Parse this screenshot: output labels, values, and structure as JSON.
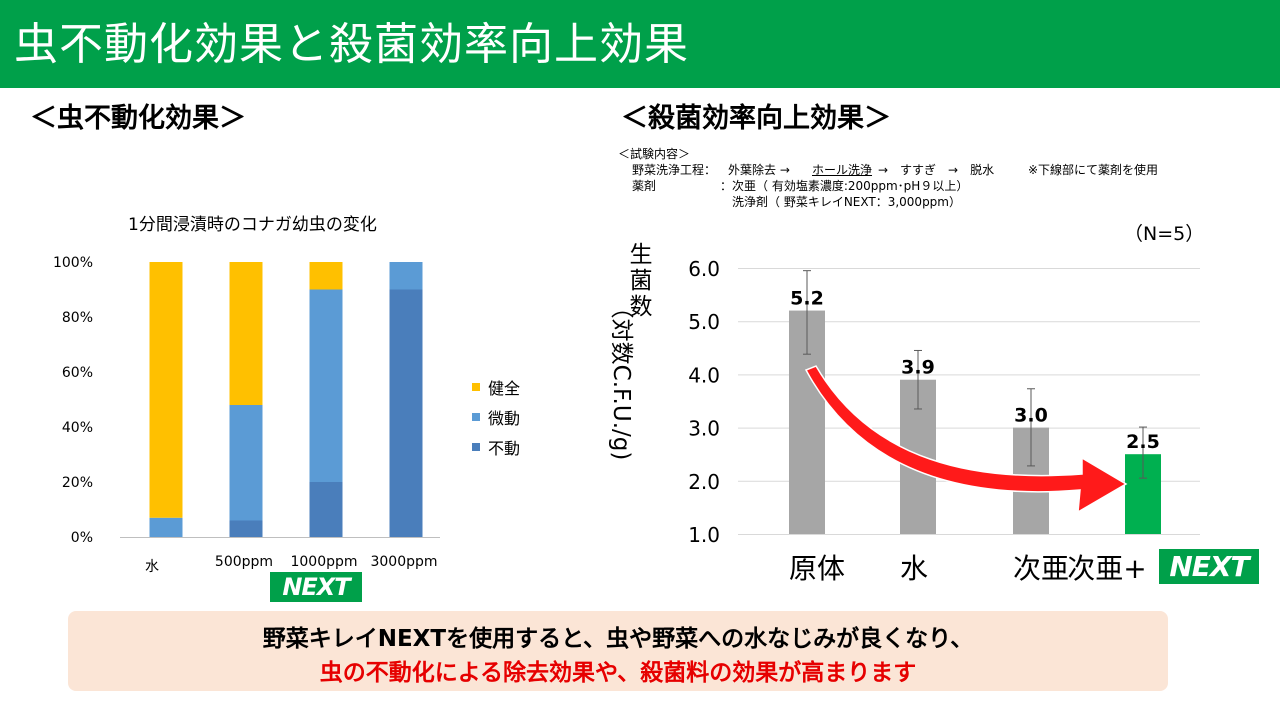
{
  "page_title": "虫不動化効果と殺菌効率向上効果",
  "left_section": {
    "heading": "＜虫不動化効果＞"
  },
  "right_section": {
    "heading": "＜殺菌効率向上効果＞",
    "test_notes": {
      "header": "＜試験内容＞",
      "line1_label": "野菜洗浄工程：",
      "line1_a": "外葉除去 →",
      "line1_b": "ホール洗浄",
      "line1_c": "→　すすぎ　→　脱水",
      "line1_note": "※下線部にて薬剤を使用",
      "line2_label": "薬剤",
      "line2_sep": "：",
      "line2_value": "次亜（ 有効塩素濃度:200ppm･pH９以上）",
      "line3_value": "洗浄剤（ 野菜キレイNEXT：3,000ppm）"
    },
    "n_label": "（N=5）"
  },
  "next_badge": "NEXT",
  "conclusion": {
    "line1": "野菜キレイNEXTを使用すると、虫や野菜への水なじみが良くなり、",
    "line2": "虫の不動化による除去効果や、殺菌料の効果が高まります"
  },
  "chart_data": [
    {
      "type": "bar",
      "stacked": true,
      "title": "1分間浸漬時のコナガ幼虫の変化",
      "categories": [
        "水",
        "500ppm",
        "1000ppm",
        "3000ppm"
      ],
      "ylim": [
        0,
        100
      ],
      "y_ticks": [
        "0%",
        "20%",
        "40%",
        "60%",
        "80%",
        "100%"
      ],
      "legend_position": "right",
      "series": [
        {
          "name": "不動",
          "color": "#4a7ebb",
          "values": [
            0,
            6,
            20,
            90
          ]
        },
        {
          "name": "微動",
          "color": "#5b9bd5",
          "values": [
            7,
            42,
            70,
            10
          ]
        },
        {
          "name": "健全",
          "color": "#ffc000",
          "values": [
            93,
            52,
            10,
            0
          ]
        }
      ],
      "grid": false
    },
    {
      "type": "bar",
      "ylabel_top": "生菌数",
      "ylabel_rest": "（対数C.F.U./g)",
      "categories": [
        "原体",
        "水",
        "次亜",
        "次亜+"
      ],
      "values": [
        5.2,
        3.9,
        3.0,
        2.5
      ],
      "value_labels": [
        "5.2",
        "3.9",
        "3.0",
        "2.5"
      ],
      "error_low": [
        4.38,
        3.35,
        2.28,
        2.05
      ],
      "error_high": [
        5.95,
        4.45,
        3.73,
        3.01
      ],
      "bar_colors": [
        "#a6a6a6",
        "#a6a6a6",
        "#a6a6a6",
        "#00b050"
      ],
      "ylim": [
        1.0,
        6.0
      ],
      "y_ticks": [
        "1.0",
        "2.0",
        "3.0",
        "4.0",
        "5.0",
        "6.0"
      ],
      "grid": true
    }
  ]
}
